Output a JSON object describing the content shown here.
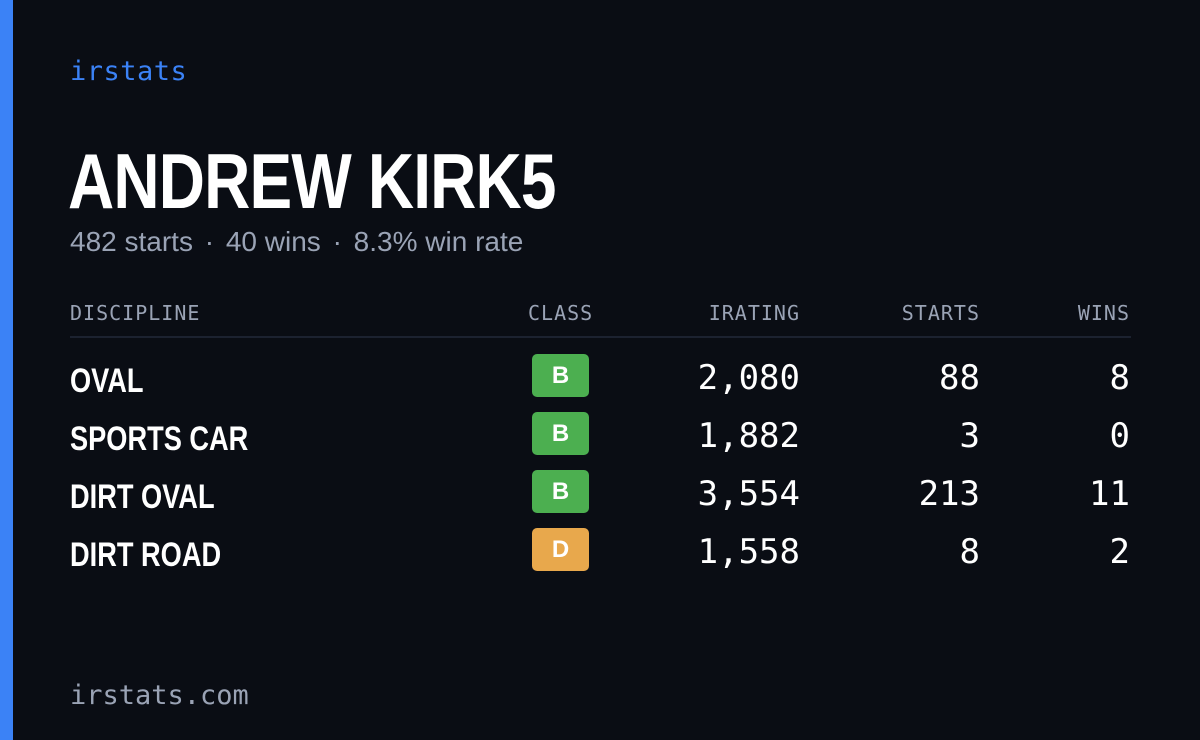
{
  "brand": "irstats",
  "driver": {
    "name": "ANDREW KIRK5",
    "starts_text": "482 starts",
    "wins_text": "40 wins",
    "win_rate_text": "8.3% win rate",
    "separator": "·"
  },
  "table": {
    "headers": {
      "discipline": "DISCIPLINE",
      "class": "CLASS",
      "irating": "IRATING",
      "starts": "STARTS",
      "wins": "WINS"
    },
    "rows": [
      {
        "discipline": "OVAL",
        "class": "B",
        "class_color": "#4caf50",
        "irating": "2,080",
        "starts": "88",
        "wins": "8"
      },
      {
        "discipline": "SPORTS CAR",
        "class": "B",
        "class_color": "#4caf50",
        "irating": "1,882",
        "starts": "3",
        "wins": "0"
      },
      {
        "discipline": "DIRT OVAL",
        "class": "B",
        "class_color": "#4caf50",
        "irating": "3,554",
        "starts": "213",
        "wins": "11"
      },
      {
        "discipline": "DIRT ROAD",
        "class": "D",
        "class_color": "#e8a84c",
        "irating": "1,558",
        "starts": "8",
        "wins": "2"
      }
    ]
  },
  "footer": {
    "url": "irstats.com"
  },
  "colors": {
    "background": "#0a0d14",
    "accent": "#3b82f6",
    "muted_text": "#9aa3b5",
    "class_b": "#4caf50",
    "class_d": "#e8a84c"
  }
}
